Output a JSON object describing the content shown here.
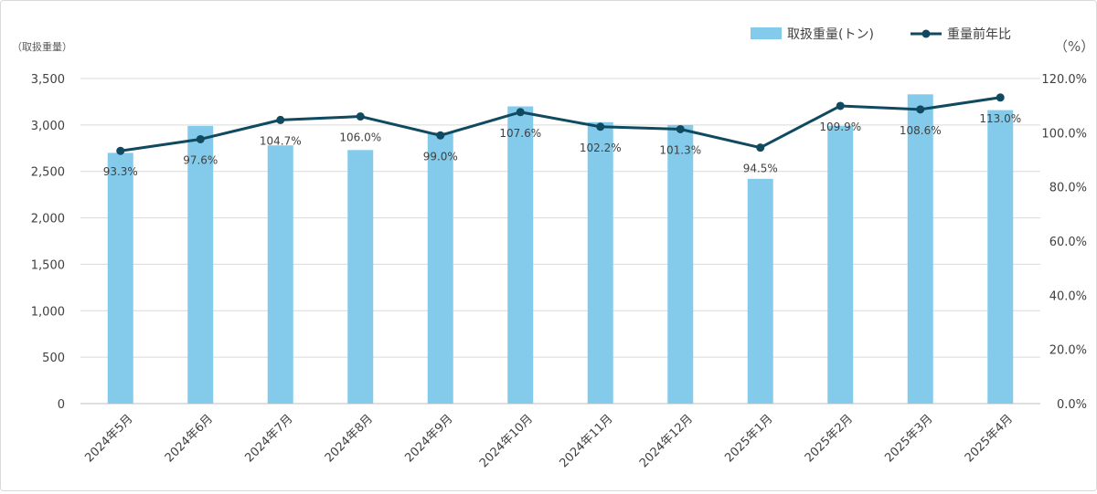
{
  "chart_data": {
    "type": "bar+line",
    "categories": [
      "2024年5月",
      "2024年6月",
      "2024年7月",
      "2024年8月",
      "2024年9月",
      "2024年10月",
      "2024年11月",
      "2024年12月",
      "2025年1月",
      "2025年2月",
      "2025年3月",
      "2025年4月"
    ],
    "series": [
      {
        "name": "取扱重量(トン)",
        "type": "bar",
        "axis": "left",
        "values": [
          2700,
          2990,
          2780,
          2730,
          2920,
          3200,
          3030,
          3000,
          2420,
          2990,
          3330,
          3160
        ]
      },
      {
        "name": "重量前年比",
        "type": "line",
        "axis": "right",
        "values": [
          93.3,
          97.6,
          104.7,
          106.0,
          99.0,
          107.6,
          102.2,
          101.3,
          94.5,
          109.9,
          108.6,
          113.0
        ],
        "labels": [
          "93.3%",
          "97.6%",
          "104.7%",
          "106.0%",
          "99.0%",
          "107.6%",
          "102.2%",
          "101.3%",
          "94.5%",
          "109.9%",
          "108.6%",
          "113.0%"
        ]
      }
    ],
    "left_axis": {
      "unit_label": "（取扱重量）",
      "ylim": [
        0,
        3500
      ],
      "ticks": [
        "0",
        "500",
        "1,000",
        "1,500",
        "2,000",
        "2,500",
        "3,000",
        "3,500"
      ]
    },
    "right_axis": {
      "unit_label": "（%）",
      "ylim": [
        0,
        120
      ],
      "ticks": [
        "0.0%",
        "20.0%",
        "40.0%",
        "60.0%",
        "80.0%",
        "100.0%",
        "120.0%"
      ]
    },
    "grid": true,
    "legend_position": "top-right",
    "colors": {
      "bar": "#84cbeb",
      "line": "#0f4a60",
      "grid": "#d9d9d9",
      "text": "#404040"
    }
  }
}
